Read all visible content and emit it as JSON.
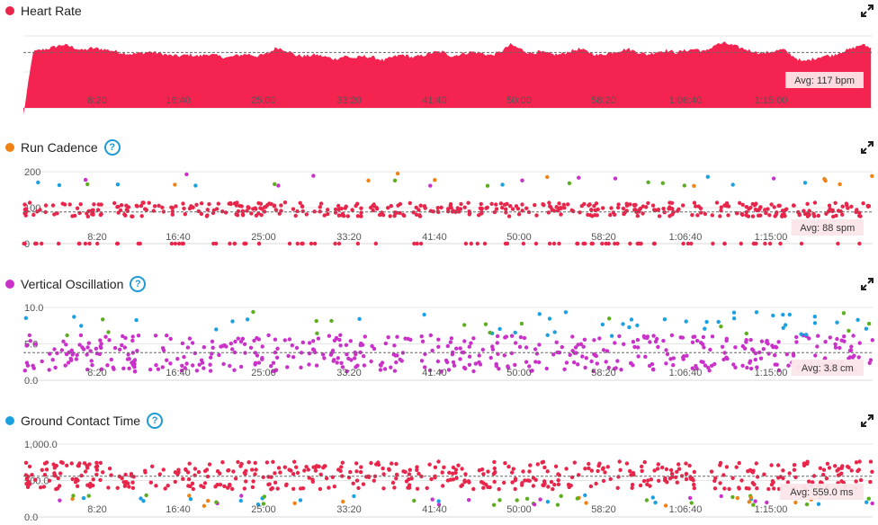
{
  "panels": [
    {
      "id": "heart-rate",
      "title": "Heart Rate",
      "color": "#e8254a",
      "has_help": false,
      "avg_label": "Avg: 117 bpm",
      "chart_data": {
        "type": "area",
        "title": "Heart Rate",
        "x_ticks": [
          "8:20",
          "16:40",
          "25:00",
          "33:20",
          "41:40",
          "50:00",
          "58:20",
          "1:06:40",
          "1:15:00"
        ],
        "y_ticks": [],
        "grid": true,
        "series": [
          {
            "values": [
              [
                0,
                30
              ],
              [
                60,
                118
              ],
              [
                120,
                121
              ],
              [
                180,
                124
              ],
              [
                240,
                128
              ],
              [
                300,
                125
              ],
              [
                360,
                120
              ],
              [
                420,
                123
              ],
              [
                480,
                122
              ],
              [
                540,
                120
              ],
              [
                600,
                117
              ],
              [
                660,
                115
              ],
              [
                720,
                116
              ],
              [
                780,
                118
              ],
              [
                840,
                116
              ],
              [
                900,
                113
              ],
              [
                960,
                112
              ],
              [
                1020,
                114
              ],
              [
                1080,
                112
              ],
              [
                1140,
                115
              ],
              [
                1200,
                112
              ],
              [
                1260,
                110
              ],
              [
                1320,
                113
              ],
              [
                1380,
                115
              ],
              [
                1440,
                112
              ],
              [
                1500,
                115
              ],
              [
                1560,
                124
              ],
              [
                1620,
                120
              ],
              [
                1680,
                113
              ],
              [
                1740,
                112
              ],
              [
                1800,
                114
              ],
              [
                1860,
                111
              ],
              [
                1920,
                108
              ],
              [
                1980,
                112
              ],
              [
                2040,
                109
              ],
              [
                2100,
                112
              ],
              [
                2160,
                110
              ],
              [
                2220,
                106
              ],
              [
                2280,
                111
              ],
              [
                2340,
                114
              ],
              [
                2400,
                110
              ],
              [
                2460,
                113
              ],
              [
                2520,
                117
              ],
              [
                2580,
                118
              ],
              [
                2640,
                112
              ],
              [
                2700,
                115
              ],
              [
                2760,
                118
              ],
              [
                2820,
                116
              ],
              [
                2880,
                113
              ],
              [
                2940,
                118
              ],
              [
                3000,
                128
              ],
              [
                3060,
                122
              ],
              [
                3120,
                116
              ],
              [
                3180,
                118
              ],
              [
                3240,
                115
              ],
              [
                3300,
                114
              ],
              [
                3360,
                118
              ],
              [
                3420,
                122
              ],
              [
                3480,
                118
              ],
              [
                3540,
                113
              ],
              [
                3600,
                116
              ],
              [
                3660,
                119
              ],
              [
                3720,
                122
              ],
              [
                3780,
                118
              ],
              [
                3840,
                114
              ],
              [
                3900,
                118
              ],
              [
                3960,
                120
              ],
              [
                4020,
                117
              ],
              [
                4080,
                120
              ],
              [
                4140,
                122
              ],
              [
                4200,
                118
              ],
              [
                4260,
                128
              ],
              [
                4320,
                130
              ],
              [
                4380,
                126
              ],
              [
                4440,
                122
              ],
              [
                4500,
                118
              ],
              [
                4560,
                116
              ],
              [
                4620,
                119
              ],
              [
                4680,
                121
              ],
              [
                4740,
                112
              ],
              [
                4800,
                104
              ],
              [
                4860,
                108
              ],
              [
                4920,
                112
              ],
              [
                4980,
                113
              ],
              [
                5040,
                118
              ],
              [
                5100,
                122
              ],
              [
                5160,
                128
              ],
              [
                5220,
                124
              ]
            ]
          }
        ],
        "avg": 117,
        "xlim": [
          0,
          5230
        ],
        "ylim": [
          40,
          140
        ]
      }
    },
    {
      "id": "run-cadence",
      "title": "Run Cadence",
      "color": "#f08214",
      "has_help": true,
      "avg_label": "Avg: 88 spm",
      "chart_data": {
        "type": "scatter",
        "title": "Run Cadence",
        "x_ticks": [
          "8:20",
          "16:40",
          "25:00",
          "33:20",
          "41:40",
          "50:00",
          "58:20",
          "1:06:40",
          "1:15:00"
        ],
        "y_ticks": [
          "0",
          "100",
          "200"
        ],
        "grid": true,
        "avg": 88,
        "xlim": [
          0,
          5230
        ],
        "ylim": [
          0,
          200
        ]
      }
    },
    {
      "id": "vertical-oscillation",
      "title": "Vertical Oscillation",
      "color": "#c931c9",
      "has_help": true,
      "avg_label": "Avg: 3.8 cm",
      "chart_data": {
        "type": "scatter",
        "title": "Vertical Oscillation",
        "x_ticks": [
          "8:20",
          "16:40",
          "25:00",
          "33:20",
          "41:40",
          "50:00",
          "58:20",
          "1:06:40",
          "1:15:00"
        ],
        "y_ticks": [
          "0.0",
          "5.0",
          "10.0"
        ],
        "grid": true,
        "avg": 3.8,
        "xlim": [
          0,
          5230
        ],
        "ylim": [
          0,
          10
        ]
      }
    },
    {
      "id": "ground-contact-time",
      "title": "Ground Contact Time",
      "color": "#1ba1e2",
      "has_help": true,
      "avg_label": "Avg: 559.0 ms",
      "chart_data": {
        "type": "scatter",
        "title": "Ground Contact Time",
        "x_ticks": [
          "8:20",
          "16:40",
          "25:00",
          "33:20",
          "41:40",
          "50:00",
          "58:20",
          "1:06:40",
          "1:15:00"
        ],
        "y_ticks": [
          "0.0",
          "500.0",
          "1,000.0"
        ],
        "grid": true,
        "avg": 559.0,
        "xlim": [
          0,
          5230
        ],
        "ylim": [
          0,
          1000
        ]
      }
    }
  ],
  "scatter_colors": {
    "red": "#e8254a",
    "orange": "#f08214",
    "green": "#5cae1e",
    "blue": "#1ba1e2",
    "purple": "#c931c9"
  },
  "icons": {
    "expand": "expand-icon",
    "help": "help-icon"
  }
}
